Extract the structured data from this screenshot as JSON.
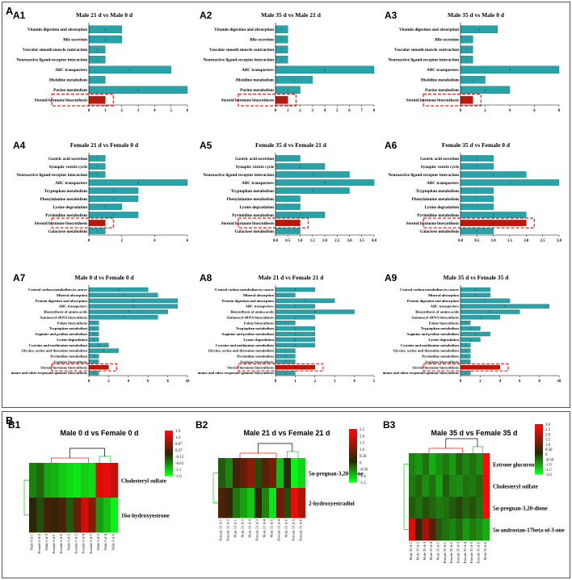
{
  "panel_a_label": "A",
  "panel_b_label": "B",
  "colors": {
    "bar": "#2aa3a8",
    "bar_edge": "#1c6f73",
    "highlight_bar": "#c0160a",
    "highlight_box": "#e8201a",
    "heat_high": "#ff1a00",
    "heat_mid": "#1a1a1a",
    "heat_low": "#19ff19"
  },
  "chart_data": [
    {
      "id": "A1",
      "type": "bar",
      "orientation": "horizontal",
      "title": "Male 21 d vs Male 0 d",
      "categories": [
        "Vitamin digestion and absorption",
        "Bile secretion",
        "Vascular smooth muscle contraction",
        "Neuroactive ligand-receptor interaction",
        "ABC transporters",
        "Histidine metabolism",
        "Purine metabolism",
        "Steroid hormone biosynthesis"
      ],
      "values": [
        2,
        2,
        1,
        1,
        5,
        1,
        6,
        1
      ],
      "xlim": [
        0,
        6
      ],
      "xticks": [
        0,
        1,
        2,
        3,
        4,
        5,
        6
      ],
      "highlight": "Steroid hormone biosynthesis"
    },
    {
      "id": "A2",
      "type": "bar",
      "orientation": "horizontal",
      "title": "Male 35 d vs Male 21 d",
      "categories": [
        "Vitamin digestion and absorption",
        "Bile secretion",
        "Vascular smooth muscle contraction",
        "Neuroactive ligand-receptor interaction",
        "ABC transporters",
        "Histidine metabolism",
        "Purine metabolism",
        "Steroid hormone biosynthesis"
      ],
      "values": [
        1,
        1,
        1,
        1,
        8,
        3,
        2,
        1
      ],
      "xlim": [
        0,
        8
      ],
      "xticks": [
        0,
        1,
        2,
        3,
        4,
        5,
        6,
        7,
        8
      ],
      "highlight": "Steroid hormone biosynthesis"
    },
    {
      "id": "A3",
      "type": "bar",
      "orientation": "horizontal",
      "title": "Male 35 d vs Male 0 d",
      "categories": [
        "Vitamin digestion and absorption",
        "Bile secretion",
        "Vascular smooth muscle contraction",
        "Neuroactive ligand-receptor interaction",
        "ABC transporters",
        "Histidine metabolism",
        "Purine metabolism",
        "Steroid hormone biosynthesis"
      ],
      "values": [
        3,
        1,
        1,
        1,
        8,
        2,
        4,
        1
      ],
      "xlim": [
        0,
        8
      ],
      "xticks": [
        0,
        2,
        4,
        6,
        8
      ],
      "highlight": "Steroid hormone biosynthesis"
    },
    {
      "id": "A4",
      "type": "bar",
      "orientation": "horizontal",
      "title": "Female 21 d vs Female 0 d",
      "categories": [
        "Gastric acid secretion",
        "Synaptic vesicle cycle",
        "Neuroactive ligand-receptor interaction",
        "ABC transporters",
        "Tryptophan metabolism",
        "Phenylalanine metabolism",
        "Lysine degradation",
        "Pyrimidine metabolism",
        "Steroid hormone biosynthesis",
        "Galactose metabolism"
      ],
      "values": [
        1,
        1,
        1,
        6,
        3,
        3,
        2,
        3,
        1,
        1
      ],
      "xlim": [
        0,
        6
      ],
      "xticks": [
        0,
        2,
        4,
        6
      ],
      "highlight": "Steroid hormone biosynthesis"
    },
    {
      "id": "A5",
      "type": "bar",
      "orientation": "horizontal",
      "title": "Female 35 d vs Female 21 d",
      "categories": [
        "Gastric acid secretion",
        "Synaptic vesicle cycle",
        "Neuroactive ligand-receptor interaction",
        "ABC transporters",
        "Tryptophan metabolism",
        "Phenylalanine metabolism",
        "Lysine degradation",
        "Pyrimidine metabolism",
        "Steroid hormone biosynthesis",
        "Galactose metabolism"
      ],
      "values": [
        1,
        2,
        3,
        4,
        3,
        1,
        1,
        2,
        1,
        1
      ],
      "xlim": [
        0,
        4
      ],
      "xticks": [
        "0.0",
        "0.5",
        "1.0",
        "1.5",
        "2.0",
        "2.5",
        "3.0",
        "3.5",
        "4.0"
      ],
      "highlight": "Steroid hormone biosynthesis"
    },
    {
      "id": "A6",
      "type": "bar",
      "orientation": "horizontal",
      "title": "Female 35 d vs Female 0 d",
      "categories": [
        "Gastric acid secretion",
        "Synaptic vesicle cycle",
        "Neuroactive ligand-receptor interaction",
        "ABC transporters",
        "Tryptophan metabolism",
        "Phenylalanine metabolism",
        "Lysine degradation",
        "Pyrimidine metabolism",
        "Steroid hormone biosynthesis",
        "Galactose metabolism"
      ],
      "values": [
        1,
        1,
        2,
        3,
        1,
        1,
        1,
        2,
        2,
        1
      ],
      "xlim": [
        0,
        3
      ],
      "xticks": [
        "0.0",
        "0.5",
        "1.0",
        "1.5",
        "2.0",
        "2.5",
        "3.0"
      ],
      "highlight": "Steroid hormone biosynthesis"
    },
    {
      "id": "A7",
      "type": "bar",
      "orientation": "horizontal",
      "title": "Male 0 d vs Female 0 d",
      "categories": [
        "Central carbon metabolism in cancer",
        "Mineral absorption",
        "Protein digestion and absorption",
        "ABC transporters",
        "Biosynthesis of amino acids",
        "Aminoacyl-tRNA biosynthesis",
        "Folate biosynthesis",
        "Tryptophan metabolism",
        "Arginine and proline metabolism",
        "Lysine degradation",
        "Cysteine and methionine metabolism",
        "Glycine, serine and threonine metabolism",
        "Pyrimidine metabolism",
        "Arginine biosynthesis",
        "Steroid hormone biosynthesis",
        "Ubiquinone and other terpenoid-quinone biosynthesis"
      ],
      "values": [
        6,
        7,
        9,
        9,
        8,
        7,
        1,
        1,
        1,
        1,
        2,
        3,
        1,
        1,
        2,
        1
      ],
      "xlim": [
        0,
        10
      ],
      "xticks": [
        0,
        2,
        4,
        6,
        8,
        10
      ],
      "highlight": "Steroid hormone biosynthesis"
    },
    {
      "id": "A8",
      "type": "bar",
      "orientation": "horizontal",
      "title": "Male 21 d vs Female 21 d",
      "categories": [
        "Central carbon metabolism in cancer",
        "Mineral absorption",
        "Protein digestion and absorption",
        "ABC transporters",
        "Biosynthesis of amino acids",
        "Aminoacyl-tRNA biosynthesis",
        "Folate biosynthesis",
        "Tryptophan metabolism",
        "Arginine and proline metabolism",
        "Lysine degradation",
        "Cysteine and methionine metabolism",
        "Glycine, serine and threonine metabolism",
        "Pyrimidine metabolism",
        "Arginine biosynthesis",
        "Steroid hormone biosynthesis",
        "Ubiquinone and other terpenoid-quinone biosynthesis"
      ],
      "values": [
        2,
        1,
        3,
        2,
        4,
        2,
        1,
        2,
        2,
        2,
        2,
        1,
        1,
        1,
        2,
        1
      ],
      "xlim": [
        0,
        5
      ],
      "xticks": [
        0,
        1,
        2,
        3,
        4,
        5
      ],
      "highlight": "Steroid hormone biosynthesis"
    },
    {
      "id": "A9",
      "type": "bar",
      "orientation": "horizontal",
      "title": "Male 35 d vs Female 35 d",
      "categories": [
        "Central carbon metabolism in cancer",
        "Mineral absorption",
        "Protein digestion and absorption",
        "ABC transporters",
        "Biosynthesis of amino acids",
        "Aminoacyl-tRNA biosynthesis",
        "Folate biosynthesis",
        "Tryptophan metabolism",
        "Arginine and proline metabolism",
        "Lysine degradation",
        "Cysteine and methionine metabolism",
        "Glycine, serine and threonine metabolism",
        "Pyrimidine metabolism",
        "Arginine biosynthesis",
        "Steroid hormone biosynthesis",
        "Ubiquinone and other terpenoid-quinone biosynthesis"
      ],
      "values": [
        3,
        3,
        5,
        9,
        6,
        4,
        1,
        2,
        3,
        2,
        1,
        1,
        1,
        1,
        4,
        1
      ],
      "xlim": [
        0,
        10
      ],
      "xticks": [
        0,
        2,
        4,
        6,
        8,
        10
      ],
      "highlight": "Steroid hormone biosynthesis"
    },
    {
      "id": "B1",
      "type": "heatmap",
      "title": "Male 0 d vs Female 0 d",
      "rows": [
        "Cholesteryl sulfate",
        "16α-hydroxyestrone"
      ],
      "columns": [
        "Male 0 d-1",
        "Female 0 d-3",
        "Male 0 d-3",
        "Female 0 d-1",
        "Female 0 d-6",
        "Male 0 d-5",
        "Female 0 d-2",
        "Female 0 d-4",
        "Female 0 d-5",
        "Male 0 d-2",
        "Male 0 d-4",
        "Male 0 d-6"
      ],
      "values": [
        [
          -0.6,
          -0.4,
          -0.9,
          -1.0,
          -1.2,
          -1.3,
          -1.4,
          -1.2,
          -1.3,
          1.6,
          1.7,
          1.4
        ],
        [
          0.1,
          -0.2,
          0.3,
          0.2,
          0.4,
          -0.3,
          0.6,
          1.5,
          0.9,
          -0.8,
          -1.1,
          -1.5
        ]
      ],
      "legend_ticks": [
        "1.9",
        "1.4",
        "0.87",
        "0.37",
        "-0.13",
        "-0.63",
        "-1.1",
        "-1.6"
      ],
      "vmin": -1.6,
      "vmax": 1.9
    },
    {
      "id": "B2",
      "type": "heatmap",
      "title": "Male 21 d vs Female 21 d",
      "rows": [
        "5α-pregnan-3,20-dione",
        "2-hydroxyestradiol"
      ],
      "columns": [
        "Female 21 d-1",
        "Female 21 d-2",
        "Male 21 d-1",
        "Male 21 d-2",
        "Male 21 d-3",
        "Female 21 d-3",
        "Male 21 d-4",
        "Male 21 d-5",
        "Female 21 d-4",
        "Male 21 d-6",
        "Female 21 d-5",
        "Female 21 d-6"
      ],
      "values": [
        [
          -0.3,
          -0.6,
          0.4,
          0.8,
          1.2,
          -0.2,
          0.6,
          1.0,
          -1.0,
          0.2,
          -1.4,
          -1.2
        ],
        [
          0.5,
          0.3,
          -0.5,
          -0.8,
          -1.1,
          0.2,
          -0.6,
          -1.3,
          0.9,
          -0.2,
          2.2,
          1.6
        ]
      ],
      "legend_ticks": [
        "2.5",
        "2.0",
        "1.5",
        "1.0",
        "0.50",
        "0",
        "-0.50",
        "-1.0",
        "-1.5"
      ],
      "vmin": -1.5,
      "vmax": 2.5
    },
    {
      "id": "B3",
      "type": "heatmap",
      "title": "Male 35 d vs Female 35 d",
      "rows": [
        "Estrone glucuronide",
        "Cholesteryl sulfate",
        "5α-pregnan-3,20-dione",
        "5α-androstan-17beta-ol-3-one"
      ],
      "columns": [
        "Male 35 d-1",
        "Male 35 d-2",
        "Male 35 d-3",
        "Male 35 d-4",
        "Male 35 d-5",
        "Female 35 d-1",
        "Female 35 d-2",
        "Female 35 d-3",
        "Female 35 d-4",
        "Female 35 d-5",
        "Female 35 d-6",
        "Male 35 d-6"
      ],
      "values": [
        [
          -0.8,
          -1.0,
          -0.6,
          -1.2,
          -0.9,
          -0.7,
          -1.0,
          -0.5,
          -0.8,
          -0.6,
          -0.9,
          3.0
        ],
        [
          -0.7,
          -0.5,
          -0.9,
          -0.6,
          -1.1,
          -0.4,
          -0.8,
          -0.9,
          -0.6,
          -0.7,
          -0.5,
          2.8
        ],
        [
          -0.4,
          -0.6,
          -0.3,
          -0.5,
          -0.7,
          -0.6,
          -0.4,
          -0.2,
          -0.5,
          -0.3,
          -0.6,
          2.9
        ],
        [
          2.5,
          0.4,
          1.8,
          0.8,
          -0.4,
          -0.6,
          -0.8,
          -0.5,
          -1.0,
          -0.7,
          -0.9,
          -1.2
        ]
      ],
      "legend_ticks": [
        "3.0",
        "2.5",
        "2.0",
        "1.5",
        "1.0",
        "0.50",
        "0",
        "-0.50",
        "-1.0",
        "-1.5",
        "-2.0"
      ],
      "vmin": -2.0,
      "vmax": 3.0
    }
  ]
}
